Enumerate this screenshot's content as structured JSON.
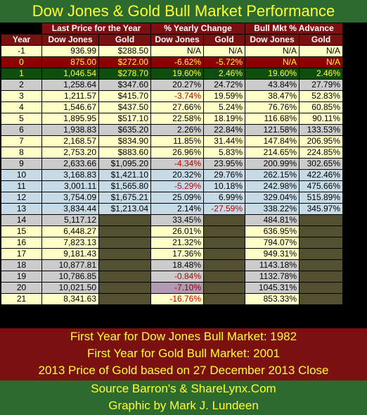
{
  "title": "Dow Jones & Gold Bull Market Performance",
  "group_headers": [
    "Last Price for the Year",
    "% Yearly Change",
    "Bull Mkt % Advance"
  ],
  "column_headers": [
    "Year",
    "Dow Jones",
    "Gold",
    "Dow Jones",
    "Gold",
    "Dow Jones",
    "Gold"
  ],
  "rows": [
    {
      "year": "-1",
      "dow": "936.99",
      "gold": "$288.50",
      "dow_chg": "N/A",
      "gold_chg": "N/A",
      "dow_adv": "N/A",
      "gold_adv": "N/A",
      "style": "light"
    },
    {
      "year": "0",
      "dow": "875.00",
      "gold": "$272.00",
      "dow_chg": "-6.62%",
      "gold_chg": "-5.72%",
      "dow_adv": "N/A",
      "gold_adv": "N/A",
      "style": "red"
    },
    {
      "year": "1",
      "dow": "1,046.54",
      "gold": "$278.70",
      "dow_chg": "19.60%",
      "gold_chg": "2.46%",
      "dow_adv": "19.60%",
      "gold_adv": "2.46%",
      "style": "green"
    },
    {
      "year": "2",
      "dow": "1,258.64",
      "gold": "$347.60",
      "dow_chg": "20.27%",
      "gold_chg": "24.72%",
      "dow_adv": "43.84%",
      "gold_adv": "27.79%",
      "style": "gray"
    },
    {
      "year": "3",
      "dow": "1,211.57",
      "gold": "$415.70",
      "dow_chg": "-3.74%",
      "gold_chg": "19.59%",
      "dow_adv": "38.47%",
      "gold_adv": "52.83%",
      "style": "light"
    },
    {
      "year": "4",
      "dow": "1,546.67",
      "gold": "$437.50",
      "dow_chg": "27.66%",
      "gold_chg": "5.24%",
      "dow_adv": "76.76%",
      "gold_adv": "60.85%",
      "style": "light"
    },
    {
      "year": "5",
      "dow": "1,895.95",
      "gold": "$517.10",
      "dow_chg": "22.58%",
      "gold_chg": "18.19%",
      "dow_adv": "116.68%",
      "gold_adv": "90.11%",
      "style": "light"
    },
    {
      "year": "6",
      "dow": "1,938.83",
      "gold": "$635.20",
      "dow_chg": "2.26%",
      "gold_chg": "22.84%",
      "dow_adv": "121.58%",
      "gold_adv": "133.53%",
      "style": "gray"
    },
    {
      "year": "7",
      "dow": "2,168.57",
      "gold": "$834.90",
      "dow_chg": "11.85%",
      "gold_chg": "31.44%",
      "dow_adv": "147.84%",
      "gold_adv": "206.95%",
      "style": "light"
    },
    {
      "year": "8",
      "dow": "2,753.20",
      "gold": "$883.60",
      "dow_chg": "26.96%",
      "gold_chg": "5.83%",
      "dow_adv": "214.65%",
      "gold_adv": "224.85%",
      "style": "light"
    },
    {
      "year": "9",
      "dow": "2,633.66",
      "gold": "$1,095.20",
      "dow_chg": "-4.34%",
      "gold_chg": "23.95%",
      "dow_adv": "200.99%",
      "gold_adv": "302.65%",
      "style": "gray"
    },
    {
      "year": "10",
      "dow": "3,168.83",
      "gold": "$1,421.10",
      "dow_chg": "20.32%",
      "gold_chg": "29.76%",
      "dow_adv": "262.15%",
      "gold_adv": "422.46%",
      "style": "blue"
    },
    {
      "year": "11",
      "dow": "3,001.11",
      "gold": "$1,565.80",
      "dow_chg": "-5.29%",
      "gold_chg": "10.18%",
      "dow_adv": "242.98%",
      "gold_adv": "475.66%",
      "style": "blue"
    },
    {
      "year": "12",
      "dow": "3,754.09",
      "gold": "$1,675.21",
      "dow_chg": "25.09%",
      "gold_chg": "6.99%",
      "dow_adv": "329.04%",
      "gold_adv": "515.89%",
      "style": "blue"
    },
    {
      "year": "13",
      "dow": "3,834.44",
      "gold": "$1,213.04",
      "dow_chg": "2.14%",
      "gold_chg": "-27.59%",
      "dow_adv": "338.22%",
      "gold_adv": "345.97%",
      "style": "blue"
    },
    {
      "year": "14",
      "dow": "5,117.12",
      "gold": "",
      "dow_chg": "33.45%",
      "gold_chg": "",
      "dow_adv": "484.81%",
      "gold_adv": "",
      "style": "gray"
    },
    {
      "year": "15",
      "dow": "6,448.27",
      "gold": "",
      "dow_chg": "26.01%",
      "gold_chg": "",
      "dow_adv": "636.95%",
      "gold_adv": "",
      "style": "light"
    },
    {
      "year": "16",
      "dow": "7,823.13",
      "gold": "",
      "dow_chg": "21.32%",
      "gold_chg": "",
      "dow_adv": "794.07%",
      "gold_adv": "",
      "style": "light"
    },
    {
      "year": "17",
      "dow": "9,181.43",
      "gold": "",
      "dow_chg": "17.36%",
      "gold_chg": "",
      "dow_adv": "949.31%",
      "gold_adv": "",
      "style": "light"
    },
    {
      "year": "18",
      "dow": "10,877.81",
      "gold": "",
      "dow_chg": "18.48%",
      "gold_chg": "",
      "dow_adv": "1143.18%",
      "gold_adv": "",
      "style": "gray"
    },
    {
      "year": "19",
      "dow": "10,786.85",
      "gold": "",
      "dow_chg": "-0.84%",
      "gold_chg": "",
      "dow_adv": "1132.78%",
      "gold_adv": "",
      "style": "gray"
    },
    {
      "year": "20",
      "dow": "10,021.50",
      "gold": "",
      "dow_chg": "-7.10%",
      "gold_chg": "",
      "dow_adv": "1045.31%",
      "gold_adv": "",
      "style": "gray"
    },
    {
      "year": "21",
      "dow": "8,341.63",
      "gold": "",
      "dow_chg": "-16.76%",
      "gold_chg": "",
      "dow_adv": "853.33%",
      "gold_adv": "",
      "style": "light"
    }
  ],
  "footer_notes": [
    "First Year for Dow Jones Bull Market: 1982",
    "First Year for Gold Bull Market: 2001",
    "2013 Price of Gold based on 27 December 2013 Close"
  ],
  "credits": [
    "Source Barron's & ShareLynx.Com",
    "Graphic by Mark J. Lundeen"
  ],
  "colors": {
    "title_bg": "#2d6a2d",
    "title_text": "#ffff33",
    "header_bg": "#7a1010",
    "light_row": "#ffffc8",
    "gray_row": "#cbcbcb",
    "blue_row": "#c7dbe7",
    "negative_text": "#c00000"
  },
  "chart_data": {
    "type": "table",
    "title": "Dow Jones & Gold Bull Market Performance",
    "columns": [
      "Year",
      "Dow Jones Last Price",
      "Gold Last Price",
      "Dow Jones % Yearly Change",
      "Gold % Yearly Change",
      "Dow Jones Bull Mkt % Advance",
      "Gold Bull Mkt % Advance"
    ],
    "rows": [
      [
        "-1",
        "936.99",
        "$288.50",
        "N/A",
        "N/A",
        "N/A",
        "N/A"
      ],
      [
        "0",
        "875.00",
        "$272.00",
        "-6.62%",
        "-5.72%",
        "N/A",
        "N/A"
      ],
      [
        "1",
        "1,046.54",
        "$278.70",
        "19.60%",
        "2.46%",
        "19.60%",
        "2.46%"
      ],
      [
        "2",
        "1,258.64",
        "$347.60",
        "20.27%",
        "24.72%",
        "43.84%",
        "27.79%"
      ],
      [
        "3",
        "1,211.57",
        "$415.70",
        "-3.74%",
        "19.59%",
        "38.47%",
        "52.83%"
      ],
      [
        "4",
        "1,546.67",
        "$437.50",
        "27.66%",
        "5.24%",
        "76.76%",
        "60.85%"
      ],
      [
        "5",
        "1,895.95",
        "$517.10",
        "22.58%",
        "18.19%",
        "116.68%",
        "90.11%"
      ],
      [
        "6",
        "1,938.83",
        "$635.20",
        "2.26%",
        "22.84%",
        "121.58%",
        "133.53%"
      ],
      [
        "7",
        "2,168.57",
        "$834.90",
        "11.85%",
        "31.44%",
        "147.84%",
        "206.95%"
      ],
      [
        "8",
        "2,753.20",
        "$883.60",
        "26.96%",
        "5.83%",
        "214.65%",
        "224.85%"
      ],
      [
        "9",
        "2,633.66",
        "$1,095.20",
        "-4.34%",
        "23.95%",
        "200.99%",
        "302.65%"
      ],
      [
        "10",
        "3,168.83",
        "$1,421.10",
        "20.32%",
        "29.76%",
        "262.15%",
        "422.46%"
      ],
      [
        "11",
        "3,001.11",
        "$1,565.80",
        "-5.29%",
        "10.18%",
        "242.98%",
        "475.66%"
      ],
      [
        "12",
        "3,754.09",
        "$1,675.21",
        "25.09%",
        "6.99%",
        "329.04%",
        "515.89%"
      ],
      [
        "13",
        "3,834.44",
        "$1,213.04",
        "2.14%",
        "-27.59%",
        "338.22%",
        "345.97%"
      ],
      [
        "14",
        "5,117.12",
        "",
        "33.45%",
        "",
        "484.81%",
        ""
      ],
      [
        "15",
        "6,448.27",
        "",
        "26.01%",
        "",
        "636.95%",
        ""
      ],
      [
        "16",
        "7,823.13",
        "",
        "21.32%",
        "",
        "794.07%",
        ""
      ],
      [
        "17",
        "9,181.43",
        "",
        "17.36%",
        "",
        "949.31%",
        ""
      ],
      [
        "18",
        "10,877.81",
        "",
        "18.48%",
        "",
        "1143.18%",
        ""
      ],
      [
        "19",
        "10,786.85",
        "",
        "-0.84%",
        "",
        "1132.78%",
        ""
      ],
      [
        "20",
        "10,021.50",
        "",
        "-7.10%",
        "",
        "1045.31%",
        ""
      ],
      [
        "21",
        "8,341.63",
        "",
        "-16.76%",
        "",
        "853.33%",
        ""
      ]
    ]
  }
}
